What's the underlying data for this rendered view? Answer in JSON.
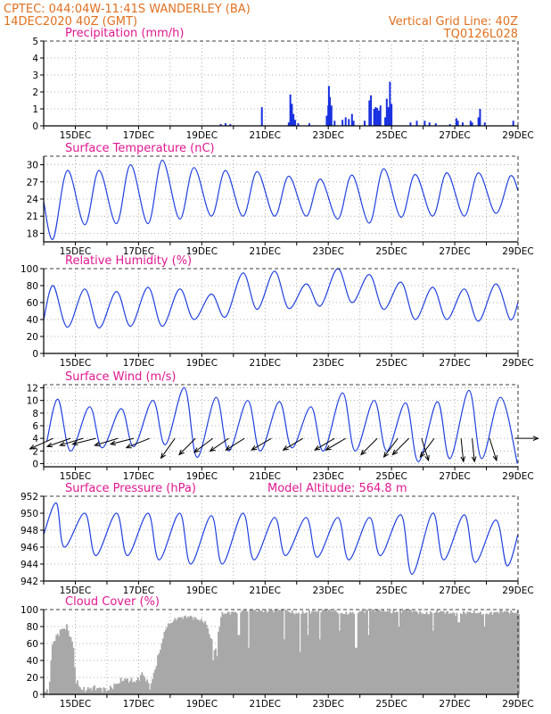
{
  "header": {
    "line1_left": "CPTEC:   044:04W-11:41S   WANDERLEY (BA)",
    "line2_left": "14DEC2020 40Z (GMT)",
    "line1_right": "Vertical Grid Line: 40Z",
    "line2_right": "TQ0126L028"
  },
  "colors": {
    "header": "#e07020",
    "title": "#e01890",
    "line": "#2040e0",
    "bar": "#1830e0",
    "cloud": "#a8a8a8"
  },
  "date_ticks": [
    "15DEC",
    "17DEC",
    "19DEC",
    "21DEC",
    "23DEC",
    "25DEC",
    "27DEC",
    "29DEC"
  ],
  "chart_data": [
    {
      "type": "bar",
      "title": "Precipitation (mm/h)",
      "ylim": [
        0,
        5
      ],
      "yticks": [
        0,
        1,
        2,
        3,
        4,
        5
      ],
      "x_unit": "days since 14DEC 12Z",
      "bars": [
        [
          5.6,
          0.1
        ],
        [
          5.75,
          0.15
        ],
        [
          5.9,
          0.1
        ],
        [
          6.9,
          1.1
        ],
        [
          7.75,
          0.2
        ],
        [
          7.8,
          1.85
        ],
        [
          7.85,
          1.3
        ],
        [
          7.9,
          0.7
        ],
        [
          7.95,
          0.35
        ],
        [
          8.05,
          0.15
        ],
        [
          8.4,
          0.15
        ],
        [
          8.95,
          0.6
        ],
        [
          9.0,
          1.2
        ],
        [
          9.02,
          2.35
        ],
        [
          9.05,
          1.7
        ],
        [
          9.1,
          1.2
        ],
        [
          9.2,
          0.3
        ],
        [
          9.45,
          0.35
        ],
        [
          9.55,
          0.5
        ],
        [
          9.65,
          0.4
        ],
        [
          9.75,
          0.7
        ],
        [
          9.8,
          0.3
        ],
        [
          10.15,
          0.3
        ],
        [
          10.3,
          1.5
        ],
        [
          10.35,
          1.8
        ],
        [
          10.45,
          1.0
        ],
        [
          10.5,
          1.1
        ],
        [
          10.55,
          1.05
        ],
        [
          10.6,
          0.9
        ],
        [
          10.65,
          1.2
        ],
        [
          10.8,
          0.5
        ],
        [
          10.85,
          1.6
        ],
        [
          10.9,
          1.1
        ],
        [
          10.95,
          2.6
        ],
        [
          11.0,
          1.3
        ],
        [
          11.6,
          0.2
        ],
        [
          11.8,
          0.3
        ],
        [
          12.05,
          0.3
        ],
        [
          12.2,
          0.2
        ],
        [
          12.4,
          0.15
        ],
        [
          12.85,
          0.1
        ],
        [
          13.05,
          0.45
        ],
        [
          13.1,
          0.3
        ],
        [
          13.25,
          0.2
        ],
        [
          13.5,
          0.3
        ],
        [
          13.55,
          0.2
        ],
        [
          13.75,
          0.5
        ],
        [
          13.8,
          1.0
        ],
        [
          13.95,
          0.2
        ],
        [
          14.85,
          0.3
        ]
      ]
    },
    {
      "type": "line",
      "title": "Surface Temperature (nC)",
      "ylim": [
        16.5,
        31.5
      ],
      "yticks": [
        18,
        21,
        24,
        27,
        30
      ],
      "minima": [
        [
          0.0,
          23.5
        ],
        [
          0.3,
          17.0
        ],
        [
          1.3,
          19.5
        ],
        [
          2.3,
          19.7
        ],
        [
          3.3,
          19.7
        ],
        [
          4.3,
          20.5
        ],
        [
          5.3,
          21.0
        ],
        [
          6.3,
          21.0
        ],
        [
          7.3,
          21.0
        ],
        [
          8.3,
          21.0
        ],
        [
          9.3,
          20.5
        ],
        [
          10.3,
          19.8
        ],
        [
          11.3,
          20.8
        ],
        [
          12.3,
          21.0
        ],
        [
          13.3,
          21.0
        ],
        [
          14.3,
          21.5
        ]
      ],
      "maxima": [
        [
          0.75,
          29.0
        ],
        [
          1.75,
          29.0
        ],
        [
          2.75,
          30.0
        ],
        [
          3.75,
          30.8
        ],
        [
          4.75,
          29.5
        ],
        [
          5.75,
          29.0
        ],
        [
          6.75,
          28.8
        ],
        [
          7.75,
          28.0
        ],
        [
          8.75,
          27.5
        ],
        [
          9.75,
          28.2
        ],
        [
          10.75,
          29.3
        ],
        [
          11.75,
          28.3
        ],
        [
          12.75,
          28.6
        ],
        [
          13.75,
          28.6
        ],
        [
          14.75,
          28.0
        ]
      ],
      "end": [
        15.0,
        25.5
      ]
    },
    {
      "type": "line",
      "title": "Relative Humidity (%)",
      "ylim": [
        0,
        100
      ],
      "yticks": [
        0,
        20,
        40,
        60,
        80,
        100
      ],
      "minima": [
        [
          0.0,
          40.0
        ],
        [
          0.75,
          31.0
        ],
        [
          1.75,
          30.0
        ],
        [
          2.75,
          32.0
        ],
        [
          3.75,
          32.0
        ],
        [
          4.75,
          40.0
        ],
        [
          5.75,
          43.0
        ],
        [
          6.75,
          52.0
        ],
        [
          7.75,
          53.0
        ],
        [
          8.75,
          56.0
        ],
        [
          9.75,
          60.0
        ],
        [
          10.75,
          52.0
        ],
        [
          11.75,
          40.0
        ],
        [
          12.75,
          40.0
        ],
        [
          13.75,
          38.0
        ],
        [
          14.75,
          40.0
        ]
      ],
      "maxima": [
        [
          0.3,
          80.0
        ],
        [
          1.3,
          76.0
        ],
        [
          2.3,
          73.0
        ],
        [
          3.3,
          78.0
        ],
        [
          4.3,
          76.0
        ],
        [
          5.3,
          70.0
        ],
        [
          6.3,
          95.0
        ],
        [
          7.3,
          97.0
        ],
        [
          8.3,
          82.0
        ],
        [
          9.3,
          100.0
        ],
        [
          10.3,
          93.0
        ],
        [
          11.3,
          84.0
        ],
        [
          12.3,
          78.0
        ],
        [
          13.3,
          76.0
        ],
        [
          14.3,
          82.0
        ]
      ],
      "end": [
        15.0,
        60.0
      ]
    },
    {
      "type": "line",
      "title": "Surface Wind (m/s)",
      "ylim": [
        -0.5,
        12.5
      ],
      "yticks": [
        0,
        2,
        4,
        6,
        8,
        10,
        12
      ],
      "minima": [
        [
          0.1,
          3.5
        ],
        [
          0.85,
          2.0
        ],
        [
          1.85,
          2.5
        ],
        [
          2.85,
          2.7
        ],
        [
          3.85,
          3.0
        ],
        [
          4.85,
          1.0
        ],
        [
          5.85,
          2.0
        ],
        [
          6.85,
          2.0
        ],
        [
          7.85,
          2.5
        ],
        [
          8.85,
          2.0
        ],
        [
          9.85,
          2.0
        ],
        [
          10.85,
          2.0
        ],
        [
          11.85,
          0.3
        ],
        [
          12.85,
          0.8
        ],
        [
          13.85,
          0.8
        ],
        [
          14.98,
          0.0
        ]
      ],
      "maxima": [
        [
          0.45,
          10.2
        ],
        [
          1.45,
          9.0
        ],
        [
          2.45,
          8.7
        ],
        [
          3.45,
          10.0
        ],
        [
          4.45,
          12.0
        ],
        [
          5.45,
          10.5
        ],
        [
          6.45,
          10.0
        ],
        [
          7.45,
          9.8
        ],
        [
          8.45,
          9.0
        ],
        [
          9.45,
          11.2
        ],
        [
          10.45,
          10.0
        ],
        [
          11.45,
          9.6
        ],
        [
          12.45,
          9.8
        ],
        [
          13.45,
          11.6
        ],
        [
          14.45,
          10.5
        ]
      ],
      "vectors": [
        [
          0.3,
          -1.0,
          -0.45
        ],
        [
          0.85,
          -1.0,
          -0.35
        ],
        [
          1.25,
          -1.0,
          -0.3
        ],
        [
          1.65,
          -1.0,
          -0.25
        ],
        [
          2.35,
          -1.0,
          -0.3
        ],
        [
          2.85,
          -1.0,
          -0.25
        ],
        [
          3.35,
          -1.0,
          -0.4
        ],
        [
          4.15,
          -0.6,
          -0.85
        ],
        [
          4.8,
          -0.7,
          -0.7
        ],
        [
          5.35,
          -0.8,
          -0.6
        ],
        [
          5.85,
          -0.8,
          -0.55
        ],
        [
          6.35,
          -0.8,
          -0.5
        ],
        [
          7.2,
          -0.85,
          -0.5
        ],
        [
          8.2,
          -0.85,
          -0.5
        ],
        [
          9.2,
          -0.85,
          -0.5
        ],
        [
          9.55,
          -0.85,
          -0.5
        ],
        [
          10.55,
          -0.7,
          -0.7
        ],
        [
          11.2,
          -0.6,
          -0.8
        ],
        [
          11.55,
          -0.7,
          -0.7
        ],
        [
          11.95,
          0.3,
          -0.95
        ],
        [
          12.35,
          -0.6,
          -0.8
        ],
        [
          13.2,
          0.1,
          -1.0
        ],
        [
          13.55,
          0.1,
          -1.0
        ],
        [
          14.1,
          0.3,
          -0.95
        ],
        [
          14.9,
          1.0,
          0.0
        ]
      ]
    },
    {
      "type": "line",
      "title": "Surface Pressure (hPa)",
      "annotation": "Model Altitude: 564.8 m",
      "ylim": [
        942,
        952
      ],
      "yticks": [
        942,
        944,
        946,
        948,
        950,
        952
      ],
      "minima": [
        [
          0.0,
          947.5
        ],
        [
          0.65,
          946.0
        ],
        [
          1.65,
          945.0
        ],
        [
          2.65,
          945.0
        ],
        [
          3.65,
          944.5
        ],
        [
          4.65,
          944.0
        ],
        [
          5.65,
          944.0
        ],
        [
          6.65,
          944.5
        ],
        [
          7.65,
          945.0
        ],
        [
          8.65,
          944.8
        ],
        [
          9.65,
          944.5
        ],
        [
          10.65,
          945.0
        ],
        [
          11.65,
          942.8
        ],
        [
          12.65,
          944.5
        ],
        [
          13.65,
          944.2
        ],
        [
          14.65,
          943.8
        ]
      ],
      "maxima": [
        [
          0.4,
          951.2
        ],
        [
          1.3,
          950.0
        ],
        [
          2.3,
          950.0
        ],
        [
          3.3,
          950.0
        ],
        [
          4.3,
          950.0
        ],
        [
          5.3,
          949.7
        ],
        [
          6.3,
          950.0
        ],
        [
          7.3,
          949.5
        ],
        [
          8.3,
          949.5
        ],
        [
          9.3,
          949.5
        ],
        [
          10.3,
          949.5
        ],
        [
          11.3,
          949.8
        ],
        [
          12.3,
          950.0
        ],
        [
          13.3,
          949.8
        ],
        [
          14.3,
          949.2
        ]
      ],
      "end": [
        15.0,
        947.5
      ]
    },
    {
      "type": "area",
      "title": "Cloud Cover (%)",
      "ylim": [
        0,
        100
      ],
      "yticks": [
        0,
        20,
        40,
        60,
        80,
        100
      ],
      "profile": [
        [
          0.0,
          2.0
        ],
        [
          0.15,
          5.0
        ],
        [
          0.25,
          60.0
        ],
        [
          0.5,
          75.0
        ],
        [
          0.7,
          80.0
        ],
        [
          0.9,
          60.0
        ],
        [
          1.0,
          15.0
        ],
        [
          1.2,
          5.0
        ],
        [
          1.6,
          8.0
        ],
        [
          2.0,
          5.0
        ],
        [
          2.5,
          18.0
        ],
        [
          2.9,
          15.0
        ],
        [
          3.1,
          25.0
        ],
        [
          3.35,
          8.0
        ],
        [
          3.6,
          45.0
        ],
        [
          3.85,
          80.0
        ],
        [
          4.2,
          90.0
        ],
        [
          4.6,
          92.0
        ],
        [
          5.1,
          85.0
        ],
        [
          5.4,
          50.0
        ],
        [
          5.6,
          95.0
        ],
        [
          6.0,
          97.0
        ],
        [
          6.5,
          100.0
        ],
        [
          7.0,
          98.0
        ],
        [
          7.5,
          100.0
        ],
        [
          8.0,
          95.0
        ],
        [
          8.5,
          98.0
        ],
        [
          9.0,
          100.0
        ],
        [
          9.5,
          95.0
        ],
        [
          10.0,
          98.0
        ],
        [
          10.5,
          100.0
        ],
        [
          11.0,
          97.0
        ],
        [
          11.5,
          100.0
        ],
        [
          12.0,
          95.0
        ],
        [
          12.5,
          98.0
        ],
        [
          13.0,
          95.0
        ],
        [
          13.5,
          97.0
        ],
        [
          14.0,
          95.0
        ],
        [
          14.5,
          98.0
        ],
        [
          15.0,
          96.0
        ]
      ],
      "gaps": [
        [
          5.35,
          40.0
        ],
        [
          5.45,
          45.0
        ],
        [
          6.15,
          70.0
        ],
        [
          6.45,
          55.0
        ],
        [
          7.6,
          65.0
        ],
        [
          8.1,
          50.0
        ],
        [
          8.35,
          70.0
        ],
        [
          8.7,
          65.0
        ],
        [
          9.35,
          75.0
        ],
        [
          9.85,
          55.0
        ],
        [
          10.25,
          70.0
        ],
        [
          11.2,
          80.0
        ],
        [
          12.3,
          75.0
        ],
        [
          13.1,
          85.0
        ],
        [
          13.9,
          80.0
        ]
      ]
    }
  ]
}
